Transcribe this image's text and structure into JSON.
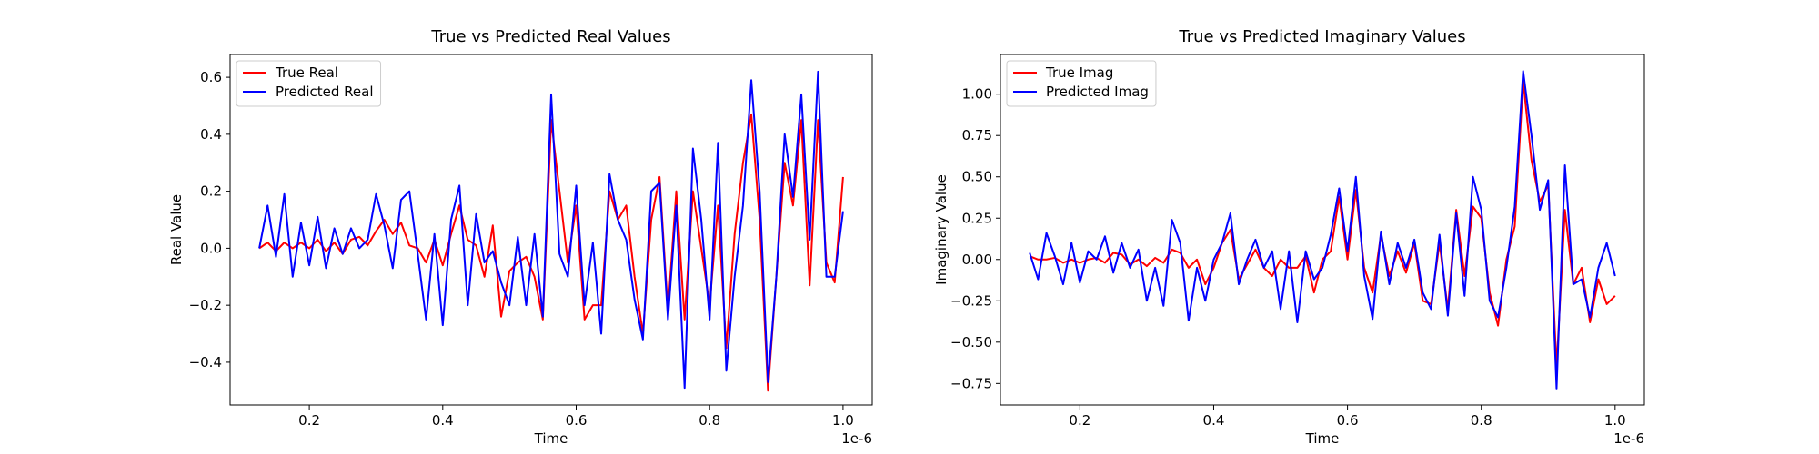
{
  "chart_data": [
    {
      "type": "line",
      "title": "True vs Predicted Real Values",
      "xlabel": "Time",
      "ylabel": "Real Value",
      "x_offset_label": "1e-6",
      "legend": "upper left",
      "x": [
        0.125,
        0.1375,
        0.15,
        0.1625,
        0.175,
        0.1875,
        0.2,
        0.2125,
        0.225,
        0.2375,
        0.25,
        0.2625,
        0.275,
        0.2875,
        0.3,
        0.3125,
        0.325,
        0.3375,
        0.35,
        0.3625,
        0.375,
        0.3875,
        0.4,
        0.4125,
        0.425,
        0.4375,
        0.45,
        0.4625,
        0.475,
        0.4875,
        0.5,
        0.5125,
        0.525,
        0.5375,
        0.55,
        0.5625,
        0.575,
        0.5875,
        0.6,
        0.6125,
        0.625,
        0.6375,
        0.65,
        0.6625,
        0.675,
        0.6875,
        0.7,
        0.7125,
        0.725,
        0.7375,
        0.75,
        0.7625,
        0.775,
        0.7875,
        0.8,
        0.8125,
        0.825,
        0.8375,
        0.85,
        0.8625,
        0.875,
        0.8875,
        0.9,
        0.9125,
        0.925,
        0.9375,
        0.95,
        0.9625,
        0.975,
        0.9875,
        1.0
      ],
      "series": [
        {
          "name": "True Real",
          "color": "#ff0000",
          "values": [
            0.0,
            0.02,
            -0.01,
            0.02,
            0.0,
            0.02,
            0.0,
            0.03,
            -0.01,
            0.02,
            -0.02,
            0.03,
            0.04,
            0.01,
            0.06,
            0.1,
            0.05,
            0.09,
            0.01,
            0.0,
            -0.05,
            0.03,
            -0.06,
            0.05,
            0.15,
            0.03,
            0.01,
            -0.1,
            0.08,
            -0.24,
            -0.08,
            -0.05,
            -0.03,
            -0.1,
            -0.25,
            0.45,
            0.2,
            -0.05,
            0.15,
            -0.25,
            -0.2,
            -0.2,
            0.2,
            0.1,
            0.15,
            -0.1,
            -0.3,
            0.1,
            0.25,
            -0.22,
            0.2,
            -0.25,
            0.2,
            0.0,
            -0.2,
            0.15,
            -0.35,
            0.05,
            0.3,
            0.47,
            0.1,
            -0.5,
            -0.1,
            0.3,
            0.15,
            0.45,
            -0.13,
            0.45,
            -0.05,
            -0.12,
            0.25
          ]
        },
        {
          "name": "Predicted Real",
          "color": "#0000ff",
          "values": [
            0.0,
            0.15,
            -0.03,
            0.19,
            -0.1,
            0.09,
            -0.06,
            0.11,
            -0.07,
            0.07,
            -0.02,
            0.07,
            0.0,
            0.03,
            0.19,
            0.08,
            -0.07,
            0.17,
            0.2,
            -0.02,
            -0.25,
            0.05,
            -0.27,
            0.1,
            0.22,
            -0.2,
            0.12,
            -0.05,
            -0.01,
            -0.12,
            -0.2,
            0.04,
            -0.2,
            0.05,
            -0.24,
            0.54,
            -0.02,
            -0.1,
            0.22,
            -0.2,
            0.02,
            -0.3,
            0.26,
            0.1,
            0.03,
            -0.18,
            -0.32,
            0.2,
            0.23,
            -0.25,
            0.15,
            -0.49,
            0.35,
            0.1,
            -0.25,
            0.37,
            -0.43,
            -0.1,
            0.15,
            0.59,
            0.2,
            -0.47,
            -0.1,
            0.4,
            0.18,
            0.54,
            0.03,
            0.62,
            -0.1,
            -0.1,
            0.13
          ]
        }
      ],
      "xlim": [
        0.08125,
        1.04375
      ],
      "ylim": [
        -0.55,
        0.68
      ],
      "xticks": [
        0.2,
        0.4,
        0.6,
        0.8,
        {
          "value": 1.0,
          "label": "1.0"
        }
      ],
      "yticks": [
        {
          "value": -0.4,
          "label": "−0.4"
        },
        {
          "value": -0.2,
          "label": "−0.2"
        },
        {
          "value": 0,
          "label": "0.0"
        },
        0.2,
        0.4,
        0.6
      ]
    },
    {
      "type": "line",
      "title": "True vs Predicted Imaginary Values",
      "xlabel": "Time",
      "ylabel": "Imaginary Value",
      "x_offset_label": "1e-6",
      "legend": "upper left",
      "x": [
        0.125,
        0.1375,
        0.15,
        0.1625,
        0.175,
        0.1875,
        0.2,
        0.2125,
        0.225,
        0.2375,
        0.25,
        0.2625,
        0.275,
        0.2875,
        0.3,
        0.3125,
        0.325,
        0.3375,
        0.35,
        0.3625,
        0.375,
        0.3875,
        0.4,
        0.4125,
        0.425,
        0.4375,
        0.45,
        0.4625,
        0.475,
        0.4875,
        0.5,
        0.5125,
        0.525,
        0.5375,
        0.55,
        0.5625,
        0.575,
        0.5875,
        0.6,
        0.6125,
        0.625,
        0.6375,
        0.65,
        0.6625,
        0.675,
        0.6875,
        0.7,
        0.7125,
        0.725,
        0.7375,
        0.75,
        0.7625,
        0.775,
        0.7875,
        0.8,
        0.8125,
        0.825,
        0.8375,
        0.85,
        0.8625,
        0.875,
        0.8875,
        0.9,
        0.9125,
        0.925,
        0.9375,
        0.95,
        0.9625,
        0.975,
        0.9875,
        1.0
      ],
      "series": [
        {
          "name": "True Imag",
          "color": "#ff0000",
          "values": [
            0.02,
            0.0,
            0.0,
            0.01,
            -0.02,
            0.0,
            -0.02,
            0.0,
            0.01,
            -0.02,
            0.04,
            0.03,
            -0.03,
            0.0,
            -0.04,
            0.01,
            -0.02,
            0.06,
            0.04,
            -0.05,
            0.0,
            -0.15,
            -0.05,
            0.1,
            0.18,
            -0.12,
            -0.03,
            0.06,
            -0.05,
            -0.1,
            0.0,
            -0.05,
            -0.05,
            0.02,
            -0.2,
            0.0,
            0.05,
            0.38,
            0.0,
            0.42,
            -0.05,
            -0.2,
            0.15,
            -0.1,
            0.05,
            -0.08,
            0.1,
            -0.25,
            -0.27,
            0.1,
            -0.3,
            0.3,
            -0.1,
            0.32,
            0.25,
            -0.2,
            -0.4,
            0.0,
            0.2,
            1.08,
            0.6,
            0.35,
            0.45,
            -0.65,
            0.3,
            -0.15,
            -0.05,
            -0.38,
            -0.12,
            -0.27,
            -0.22
          ]
        },
        {
          "name": "Predicted Imag",
          "color": "#0000ff",
          "values": [
            0.04,
            -0.12,
            0.16,
            0.02,
            -0.15,
            0.1,
            -0.14,
            0.05,
            0.0,
            0.14,
            -0.08,
            0.1,
            -0.05,
            0.06,
            -0.25,
            -0.05,
            -0.28,
            0.24,
            0.1,
            -0.37,
            -0.05,
            -0.25,
            0.0,
            0.1,
            0.28,
            -0.15,
            0.0,
            0.12,
            -0.05,
            0.05,
            -0.3,
            0.05,
            -0.38,
            0.05,
            -0.12,
            -0.05,
            0.15,
            0.43,
            0.05,
            0.5,
            -0.1,
            -0.36,
            0.17,
            -0.15,
            0.1,
            -0.05,
            0.12,
            -0.2,
            -0.3,
            0.15,
            -0.34,
            0.28,
            -0.22,
            0.5,
            0.3,
            -0.25,
            -0.35,
            -0.05,
            0.32,
            1.14,
            0.75,
            0.3,
            0.48,
            -0.78,
            0.57,
            -0.15,
            -0.12,
            -0.35,
            -0.05,
            0.1,
            -0.1
          ]
        }
      ],
      "xlim": [
        0.08125,
        1.04375
      ],
      "ylim": [
        -0.88,
        1.24
      ],
      "xticks": [
        0.2,
        0.4,
        0.6,
        0.8,
        {
          "value": 1.0,
          "label": "1.0"
        }
      ],
      "yticks": [
        {
          "value": -0.75,
          "label": "−0.75"
        },
        {
          "value": -0.5,
          "label": "−0.50"
        },
        {
          "value": -0.25,
          "label": "−0.25"
        },
        {
          "value": 0,
          "label": "0.00"
        },
        0.25,
        {
          "value": 0.5,
          "label": "0.50"
        },
        0.75,
        {
          "value": 1.0,
          "label": "1.00"
        }
      ]
    }
  ]
}
